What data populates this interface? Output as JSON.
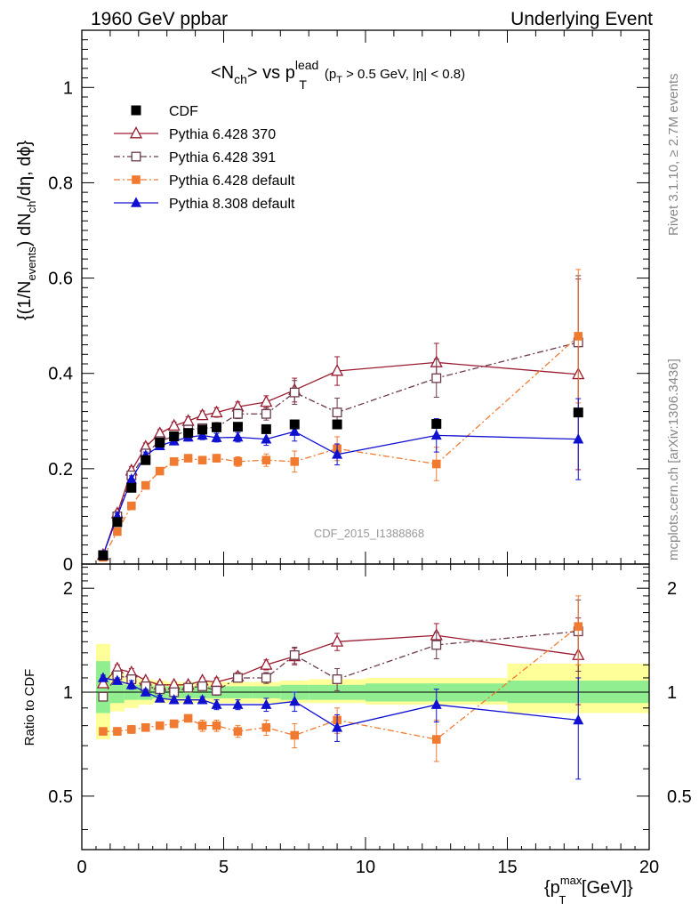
{
  "header": {
    "left": "1960 GeV ppbar",
    "right": "Underlying Event"
  },
  "side_labels": {
    "rivet": "Rivet 3.1.10, ≥ 2.7M events",
    "mcplots": "mcplots.cern.ch [arXiv:1306.3436]"
  },
  "chart_data": {
    "type": "scatter",
    "title": {
      "main": "<N",
      "sub1": "ch",
      "mid": "> vs p",
      "sup": "lead",
      "sub2": "T",
      "cuts": "(p",
      "cuts_sub": "T",
      "cuts_end": " > 0.5 GeV, |η| < 0.8)"
    },
    "analysis_id": "CDF_2015_I1388868",
    "xlabel": {
      "pre": "{p",
      "sup": "max",
      "sub": "T",
      "post": " [GeV]}"
    },
    "ylabel_main": {
      "pre": "{(1/N",
      "sub1": "events",
      "mid": ") dN",
      "sub2": "ch",
      "post": "/dη, dϕ}"
    },
    "ylabel_ratio": "Ratio to CDF",
    "xlim": [
      0,
      20
    ],
    "ylim_main": [
      0,
      1.12
    ],
    "ylim_ratio": [
      0.35,
      2.35
    ],
    "x_ticks": [
      "0",
      "5",
      "10",
      "15",
      "20"
    ],
    "y_ticks_main": [
      "0",
      "0.2",
      "0.4",
      "0.6",
      "0.8",
      "1"
    ],
    "y_ticks_ratio": [
      "0.5",
      "1",
      "2"
    ],
    "y_ticks_ratio_right": [
      "0.5",
      "1",
      "2"
    ],
    "x": [
      0.75,
      1.25,
      1.75,
      2.25,
      2.75,
      3.25,
      3.75,
      4.25,
      4.75,
      5.5,
      6.5,
      7.5,
      9.0,
      12.5,
      17.5
    ],
    "data": {
      "name": "CDF",
      "values": [
        0.018,
        0.088,
        0.16,
        0.218,
        0.255,
        0.268,
        0.275,
        0.282,
        0.287,
        0.288,
        0.283,
        0.293,
        0.293,
        0.294,
        0.318
      ],
      "stat_band": [
        0.07,
        0.05,
        0.04,
        0.04,
        0.04,
        0.04,
        0.04,
        0.04,
        0.04,
        0.04,
        0.04,
        0.045,
        0.05,
        0.06,
        0.07
      ],
      "total_band": [
        0.14,
        0.09,
        0.07,
        0.06,
        0.06,
        0.06,
        0.06,
        0.06,
        0.06,
        0.06,
        0.06,
        0.07,
        0.08,
        0.08,
        0.14
      ]
    },
    "series": [
      {
        "name": "Pythia 6.428 370",
        "color": "#9b1b30",
        "marker": "triangle-open",
        "dash": "",
        "values": [
          0.019,
          0.106,
          0.196,
          0.246,
          0.274,
          0.29,
          0.3,
          0.312,
          0.318,
          0.33,
          0.34,
          0.365,
          0.405,
          0.423,
          0.398
        ],
        "errors": [
          0.004,
          0.006,
          0.008,
          0.008,
          0.008,
          0.008,
          0.009,
          0.009,
          0.01,
          0.01,
          0.013,
          0.025,
          0.03,
          0.04,
          0.2
        ],
        "ratio": [
          1.06,
          1.17,
          1.14,
          1.08,
          1.05,
          1.05,
          1.05,
          1.08,
          1.07,
          1.11,
          1.2,
          1.27,
          1.4,
          1.46,
          1.28
        ],
        "ratio_err": [
          0.02,
          0.03,
          0.03,
          0.02,
          0.02,
          0.02,
          0.02,
          0.02,
          0.03,
          0.03,
          0.04,
          0.07,
          0.08,
          0.12,
          0.36
        ]
      },
      {
        "name": "Pythia 6.428 391",
        "color": "#6b3a4a",
        "marker": "square-open",
        "dash": "7,3,2,3",
        "values": [
          0.019,
          0.1,
          0.186,
          0.232,
          0.258,
          0.268,
          0.282,
          0.285,
          0.287,
          0.315,
          0.315,
          0.36,
          0.318,
          0.39,
          0.465
        ],
        "errors": [
          0.004,
          0.006,
          0.008,
          0.008,
          0.008,
          0.008,
          0.009,
          0.009,
          0.01,
          0.01,
          0.013,
          0.025,
          0.03,
          0.04,
          0.14
        ],
        "ratio": [
          0.97,
          1.12,
          1.09,
          1.04,
          1.02,
          1.0,
          1.03,
          1.04,
          1.01,
          1.1,
          1.1,
          1.28,
          1.09,
          1.37,
          1.5
        ],
        "ratio_err": [
          0.02,
          0.03,
          0.03,
          0.02,
          0.02,
          0.02,
          0.02,
          0.02,
          0.03,
          0.03,
          0.04,
          0.07,
          0.08,
          0.12,
          0.35
        ]
      },
      {
        "name": "Pythia 6.428 default",
        "color": "#f07a30",
        "marker": "square-filled",
        "dash": "7,3,2,3",
        "values": [
          0.014,
          0.068,
          0.122,
          0.165,
          0.195,
          0.215,
          0.222,
          0.218,
          0.222,
          0.215,
          0.218,
          0.215,
          0.242,
          0.21,
          0.478
        ],
        "errors": [
          0.003,
          0.005,
          0.006,
          0.006,
          0.006,
          0.006,
          0.006,
          0.007,
          0.008,
          0.01,
          0.013,
          0.022,
          0.025,
          0.035,
          0.14
        ],
        "ratio": [
          0.77,
          0.77,
          0.78,
          0.79,
          0.8,
          0.81,
          0.84,
          0.8,
          0.8,
          0.77,
          0.79,
          0.75,
          0.83,
          0.73,
          1.55
        ],
        "ratio_err": [
          0.01,
          0.02,
          0.02,
          0.02,
          0.02,
          0.02,
          0.02,
          0.03,
          0.03,
          0.03,
          0.04,
          0.06,
          0.07,
          0.1,
          0.35
        ]
      },
      {
        "name": "Pythia 8.308 default",
        "color": "#1010d0",
        "marker": "triangle-filled",
        "dash": "",
        "values": [
          0.019,
          0.1,
          0.178,
          0.228,
          0.248,
          0.258,
          0.266,
          0.27,
          0.265,
          0.266,
          0.262,
          0.278,
          0.23,
          0.27,
          0.262
        ],
        "errors": [
          0.004,
          0.006,
          0.007,
          0.007,
          0.008,
          0.008,
          0.008,
          0.009,
          0.009,
          0.01,
          0.013,
          0.02,
          0.022,
          0.035,
          0.085
        ],
        "ratio": [
          1.1,
          1.08,
          1.05,
          1.0,
          0.96,
          0.95,
          0.95,
          0.95,
          0.92,
          0.92,
          0.92,
          0.94,
          0.79,
          0.92,
          0.83
        ],
        "ratio_err": [
          0.02,
          0.02,
          0.03,
          0.02,
          0.02,
          0.02,
          0.02,
          0.02,
          0.03,
          0.03,
          0.04,
          0.06,
          0.07,
          0.1,
          0.27
        ]
      }
    ],
    "bands_ratio": {
      "x_edges": [
        0.5,
        1.0,
        1.5,
        2.0,
        2.5,
        3.0,
        3.5,
        4.0,
        4.5,
        5.0,
        6.0,
        7.0,
        8.0,
        10.0,
        15.0,
        20.0
      ],
      "yellow": [
        [
          0.73,
          1.38
        ],
        [
          0.88,
          1.14
        ],
        [
          0.9,
          1.1
        ],
        [
          0.92,
          1.09
        ],
        [
          0.93,
          1.08
        ],
        [
          0.93,
          1.07
        ],
        [
          0.93,
          1.07
        ],
        [
          0.93,
          1.07
        ],
        [
          0.93,
          1.07
        ],
        [
          0.93,
          1.07
        ],
        [
          0.93,
          1.07
        ],
        [
          0.93,
          1.08
        ],
        [
          0.93,
          1.09
        ],
        [
          0.92,
          1.1
        ],
        [
          0.87,
          1.21
        ]
      ],
      "green": [
        [
          0.87,
          1.23
        ],
        [
          0.93,
          1.06
        ],
        [
          0.95,
          1.05
        ],
        [
          0.95,
          1.05
        ],
        [
          0.96,
          1.04
        ],
        [
          0.96,
          1.04
        ],
        [
          0.96,
          1.04
        ],
        [
          0.96,
          1.04
        ],
        [
          0.96,
          1.04
        ],
        [
          0.96,
          1.04
        ],
        [
          0.96,
          1.04
        ],
        [
          0.95,
          1.05
        ],
        [
          0.95,
          1.05
        ],
        [
          0.94,
          1.06
        ],
        [
          0.93,
          1.08
        ]
      ]
    },
    "legend_position": "top-left"
  }
}
